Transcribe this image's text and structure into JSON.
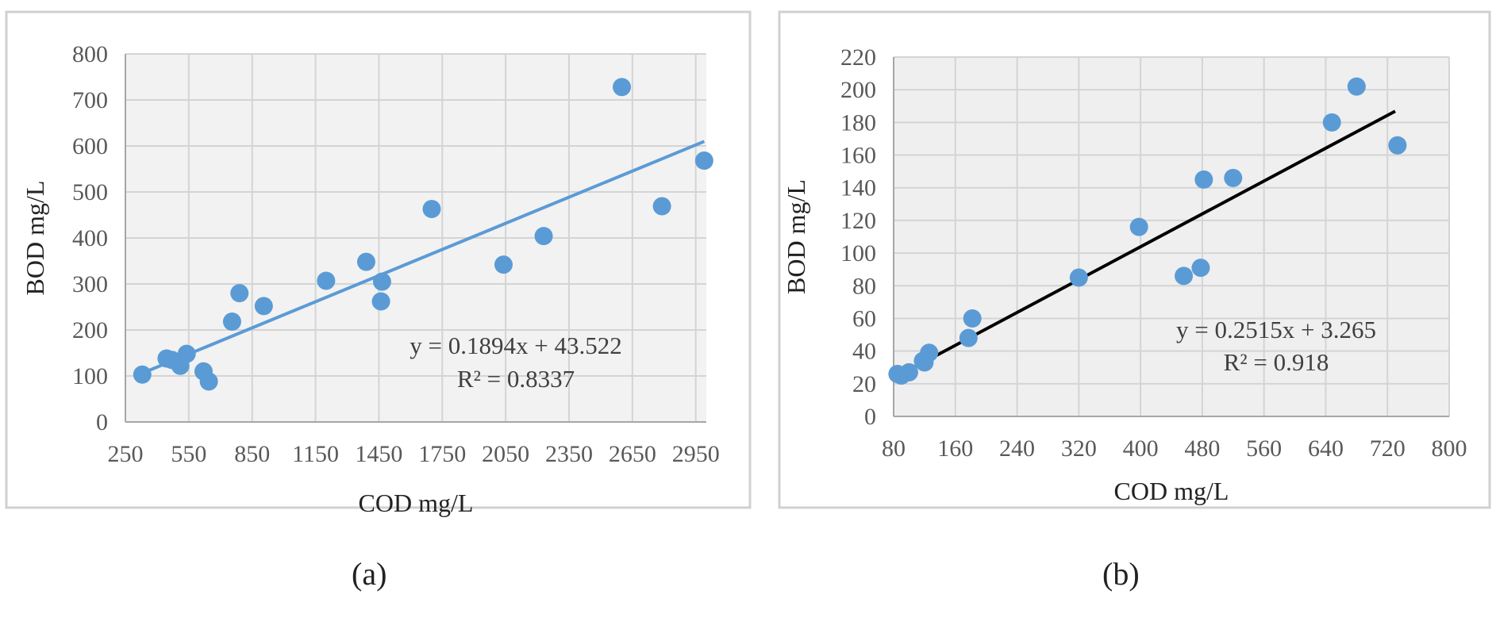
{
  "panels": [
    {
      "label": "(a)",
      "chart_data": {
        "type": "scatter",
        "title": "",
        "xlabel": "COD mg/L",
        "ylabel": "BOD mg/L",
        "xlim": [
          250,
          3000
        ],
        "ylim": [
          0,
          800
        ],
        "x_ticks": [
          250,
          550,
          850,
          1150,
          1450,
          1750,
          2050,
          2350,
          2650,
          2950
        ],
        "y_ticks": [
          0,
          100,
          200,
          300,
          400,
          500,
          600,
          700,
          800
        ],
        "grid": true,
        "plot_background": "#f2f2f2",
        "point_color": "#5b9bd5",
        "series": [
          {
            "points": [
              [
                330,
                103
              ],
              [
                445,
                138
              ],
              [
                470,
                135
              ],
              [
                510,
                122
              ],
              [
                540,
                148
              ],
              [
                620,
                110
              ],
              [
                645,
                88
              ],
              [
                755,
                218
              ],
              [
                790,
                280
              ],
              [
                905,
                252
              ],
              [
                1200,
                307
              ],
              [
                1390,
                348
              ],
              [
                1460,
                262
              ],
              [
                1465,
                305
              ],
              [
                1700,
                463
              ],
              [
                2040,
                342
              ],
              [
                2230,
                404
              ],
              [
                2600,
                728
              ],
              [
                2790,
                469
              ],
              [
                2990,
                568
              ]
            ]
          }
        ],
        "trendline": {
          "slope": 0.1894,
          "intercept": 43.522,
          "x_from": 330,
          "x_to": 2990,
          "color": "#5b9bd5"
        },
        "annotations": [
          "y = 0.1894x + 43.522",
          "R² = 0.8337"
        ]
      }
    },
    {
      "label": "(b)",
      "chart_data": {
        "type": "scatter",
        "title": "",
        "xlabel": "COD mg/L",
        "ylabel": "BOD mg/L",
        "xlim": [
          80,
          800
        ],
        "ylim": [
          0,
          220
        ],
        "x_ticks": [
          80,
          160,
          240,
          320,
          400,
          480,
          560,
          640,
          720,
          800
        ],
        "y_ticks": [
          0,
          20,
          40,
          60,
          80,
          100,
          120,
          140,
          160,
          180,
          200,
          220
        ],
        "grid": true,
        "plot_background": "#efefef",
        "point_color": "#5b9bd5",
        "series": [
          {
            "points": [
              [
                85,
                26
              ],
              [
                90,
                25
              ],
              [
                100,
                27
              ],
              [
                118,
                34
              ],
              [
                120,
                33
              ],
              [
                126,
                39
              ],
              [
                177,
                48
              ],
              [
                182,
                60
              ],
              [
                320,
                85
              ],
              [
                398,
                116
              ],
              [
                456,
                86
              ],
              [
                478,
                91
              ],
              [
                482,
                145
              ],
              [
                520,
                146
              ],
              [
                648,
                180
              ],
              [
                680,
                202
              ],
              [
                733,
                166
              ]
            ]
          }
        ],
        "trendline": {
          "slope": 0.2515,
          "intercept": 3.265,
          "x_from": 85,
          "x_to": 730,
          "color": "#000000"
        },
        "annotations": [
          "y = 0.2515x + 3.265",
          "R² = 0.918"
        ]
      }
    }
  ]
}
